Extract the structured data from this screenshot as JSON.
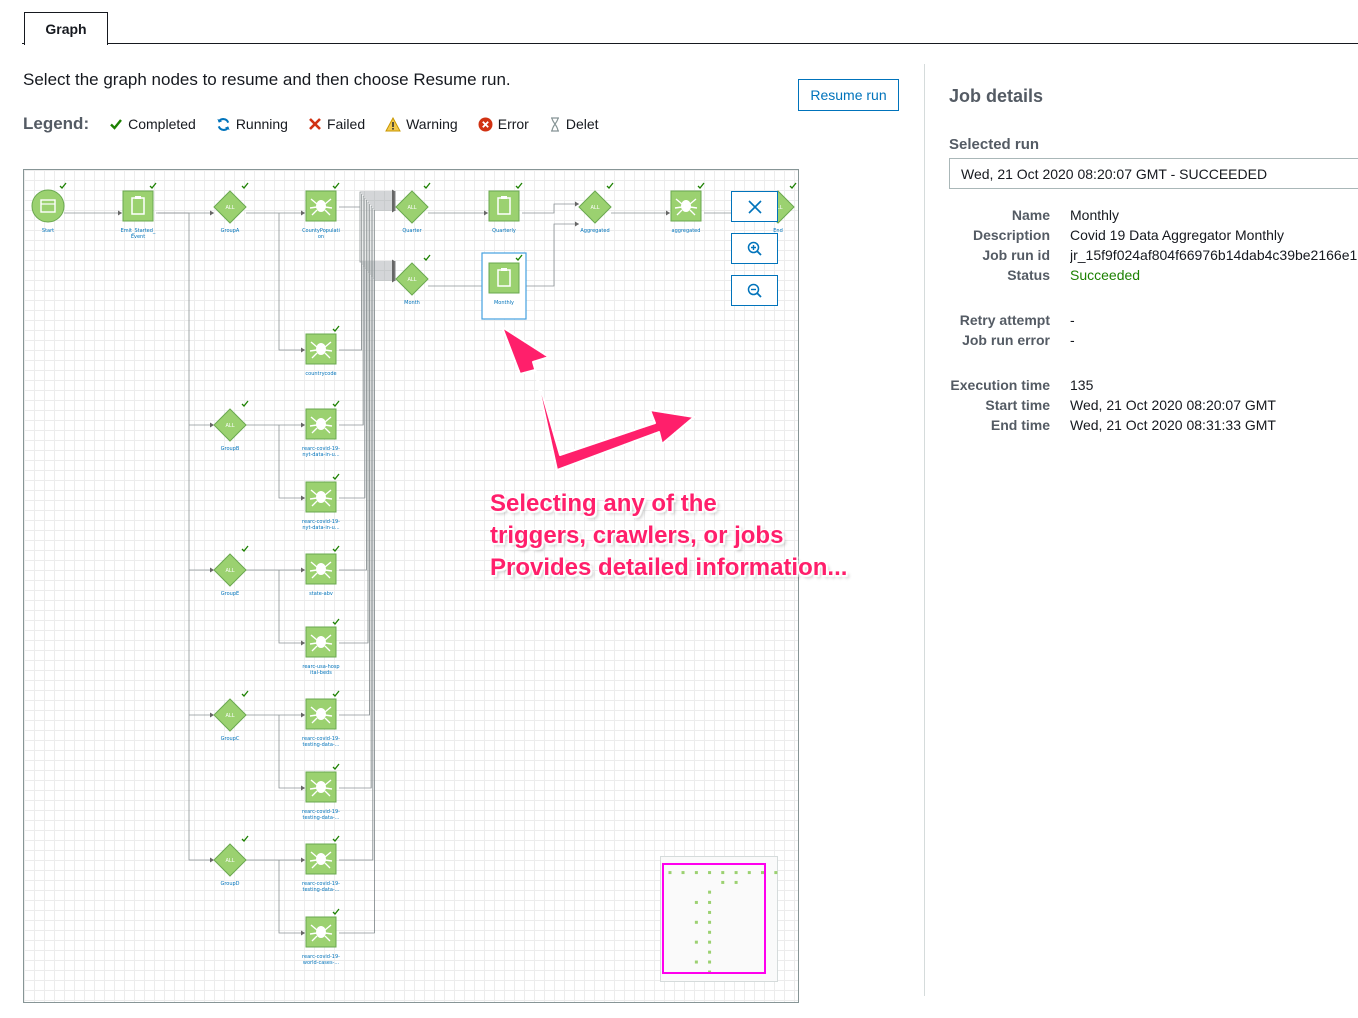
{
  "tabs": [
    {
      "label": "Graph",
      "active": true
    }
  ],
  "instruction": "Select the graph nodes to resume and then choose Resume run.",
  "resume_button": "Resume run",
  "legend": {
    "title": "Legend:",
    "items": [
      {
        "label": "Completed",
        "icon": "check-icon",
        "color": "#1d8102"
      },
      {
        "label": "Running",
        "icon": "refresh-icon",
        "color": "#0073bb"
      },
      {
        "label": "Failed",
        "icon": "x-icon",
        "color": "#d13212"
      },
      {
        "label": "Warning",
        "icon": "warning-icon",
        "color": "#ec7211"
      },
      {
        "label": "Error",
        "icon": "error-circle-icon",
        "color": "#d13212"
      },
      {
        "label": "Delet",
        "icon": "hourglass-icon",
        "color": "#879596"
      }
    ]
  },
  "graph": {
    "trigger_label": "ALL",
    "nodes": [
      {
        "id": "start",
        "type": "start",
        "label": "Start"
      },
      {
        "id": "emit",
        "type": "job",
        "label": "Emit_Started_",
        "label2": "Event"
      },
      {
        "id": "groupa",
        "type": "trigger",
        "label": "GroupA"
      },
      {
        "id": "countypop",
        "type": "crawler",
        "label": "CountyPopulati",
        "label2": "on"
      },
      {
        "id": "countrycode",
        "type": "crawler",
        "label": "countrycode"
      },
      {
        "id": "groupb",
        "type": "trigger",
        "label": "GroupB"
      },
      {
        "id": "nytus1",
        "type": "crawler",
        "label": "rearc-covid-19-",
        "label2": "nyt-data-in-u..."
      },
      {
        "id": "nytus2",
        "type": "crawler",
        "label": "rearc-covid-19-",
        "label2": "nyt-data-in-u..."
      },
      {
        "id": "groupe",
        "type": "trigger",
        "label": "GroupE"
      },
      {
        "id": "stateabv",
        "type": "crawler",
        "label": "state-abv"
      },
      {
        "id": "hospbeds",
        "type": "crawler",
        "label": "rearc-usa-hosp",
        "label2": "ital-beds"
      },
      {
        "id": "groupc",
        "type": "trigger",
        "label": "GroupC"
      },
      {
        "id": "testing1",
        "type": "crawler",
        "label": "rearc-covid-19-",
        "label2": "testing-data-..."
      },
      {
        "id": "testing2",
        "type": "crawler",
        "label": "rearc-covid-19-",
        "label2": "testing-data-..."
      },
      {
        "id": "groupd",
        "type": "trigger",
        "label": "GroupD"
      },
      {
        "id": "testing3",
        "type": "crawler",
        "label": "rearc-covid-19-",
        "label2": "testing-data-..."
      },
      {
        "id": "worldcases",
        "type": "crawler",
        "label": "rearc-covid-19-",
        "label2": "world-cases-..."
      },
      {
        "id": "quarter",
        "type": "trigger",
        "label": "Quarter"
      },
      {
        "id": "month",
        "type": "trigger",
        "label": "Month"
      },
      {
        "id": "quarterly",
        "type": "job",
        "label": "Quarterly"
      },
      {
        "id": "monthly",
        "type": "job",
        "label": "Monthly",
        "selected": true
      },
      {
        "id": "aggregated",
        "type": "trigger",
        "label": "Aggregated"
      },
      {
        "id": "aggcrawler",
        "type": "crawler",
        "label": "aggregated"
      },
      {
        "id": "end",
        "type": "trigger",
        "label": "End"
      }
    ]
  },
  "annotation": {
    "line1": "Selecting any of the",
    "line2": "triggers, crawlers, or jobs",
    "line3": "Provides detailed information...",
    "color": "#ff1f6b"
  },
  "details": {
    "title": "Job details",
    "selected_run_label": "Selected run",
    "selected_run_value": "Wed, 21 Oct 2020 08:20:07 GMT - SUCCEEDED",
    "name_label": "Name",
    "name_value": "Monthly",
    "description_label": "Description",
    "description_value": "Covid 19 Data Aggregator Monthly",
    "jobrunid_label": "Job run id",
    "jobrunid_value": "jr_15f9f024af804f66976b14dab4c39be2166e1",
    "status_label": "Status",
    "status_value": "Succeeded",
    "retry_label": "Retry attempt",
    "retry_value": "-",
    "runerror_label": "Job run error",
    "runerror_value": "-",
    "exectime_label": "Execution time",
    "exectime_value": "135",
    "starttime_label": "Start time",
    "starttime_value": "Wed, 21 Oct 2020 08:20:07 GMT",
    "endtime_label": "End time",
    "endtime_value": "Wed, 21 Oct 2020 08:31:33 GMT"
  }
}
